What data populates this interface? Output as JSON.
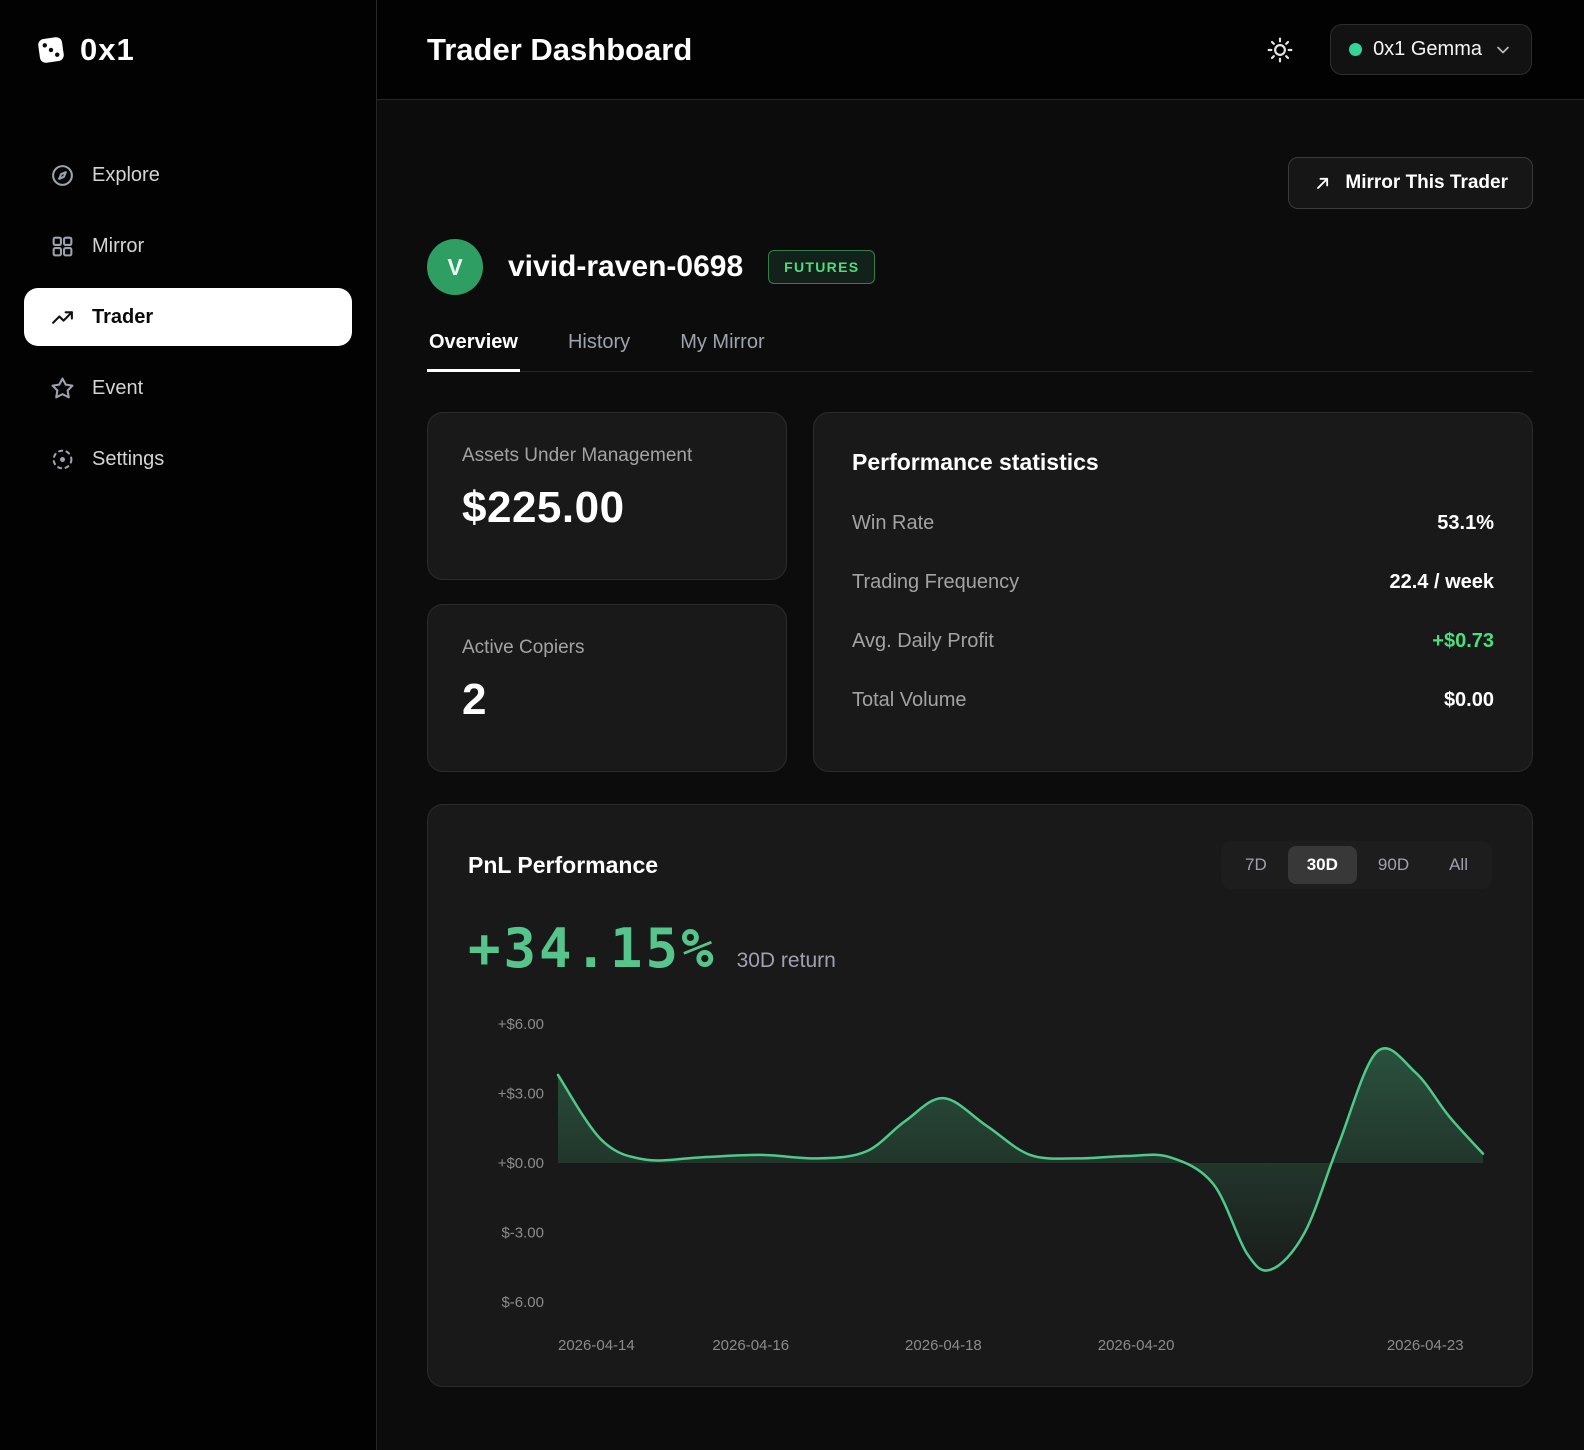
{
  "brand": {
    "logo_text": "0x1"
  },
  "header": {
    "title": "Trader Dashboard",
    "account_label": "0x1 Gemma"
  },
  "sidebar": {
    "items": [
      {
        "label": "Explore",
        "active": false
      },
      {
        "label": "Mirror",
        "active": false
      },
      {
        "label": "Trader",
        "active": true
      },
      {
        "label": "Event",
        "active": false
      },
      {
        "label": "Settings",
        "active": false
      }
    ]
  },
  "trader": {
    "avatar_letter": "V",
    "name": "vivid-raven-0698",
    "badge": "FUTURES",
    "mirror_button_label": "Mirror This Trader"
  },
  "tabs": [
    {
      "label": "Overview",
      "active": true
    },
    {
      "label": "History",
      "active": false
    },
    {
      "label": "My Mirror",
      "active": false
    }
  ],
  "cards": {
    "aum": {
      "label": "Assets Under Management",
      "value": "$225.00"
    },
    "copiers": {
      "label": "Active Copiers",
      "value": "2"
    }
  },
  "performance": {
    "title": "Performance statistics",
    "rows": [
      {
        "label": "Win Rate",
        "value": "53.1%",
        "highlight": false
      },
      {
        "label": "Trading Frequency",
        "value": "22.4 / week",
        "highlight": false
      },
      {
        "label": "Avg. Daily Profit",
        "value": "+$0.73",
        "highlight": true
      },
      {
        "label": "Total Volume",
        "value": "$0.00",
        "highlight": false
      }
    ]
  },
  "pnl": {
    "title": "PnL Performance",
    "ranges": [
      "7D",
      "30D",
      "90D",
      "All"
    ],
    "active_range": "30D",
    "return_value": "+34.15%",
    "return_label": "30D return"
  },
  "colors": {
    "accent_green": "#4ade80",
    "chart_green": "#4ec98a",
    "avatar_green": "#2f9e63"
  },
  "chart_data": {
    "type": "area",
    "title": "PnL Performance (30D)",
    "xlim": [
      0,
      9.6
    ],
    "ylim": [
      -6.6,
      6.6
    ],
    "x": [
      0,
      0.45,
      0.9,
      1.5,
      2.1,
      2.7,
      3.2,
      3.6,
      4.0,
      4.45,
      4.9,
      5.4,
      5.9,
      6.35,
      6.8,
      7.15,
      7.4,
      7.75,
      8.1,
      8.5,
      8.9,
      9.25,
      9.6
    ],
    "y": [
      3.8,
      1.0,
      0.15,
      0.25,
      0.35,
      0.2,
      0.5,
      1.8,
      2.8,
      1.6,
      0.35,
      0.2,
      0.3,
      0.25,
      -0.9,
      -3.9,
      -4.6,
      -3.0,
      0.8,
      4.8,
      3.9,
      2.0,
      0.4
    ],
    "y_tick_values": [
      6,
      3,
      0,
      -3,
      -6
    ],
    "y_tick_labels": [
      "+$6.00",
      "+$3.00",
      "+$0.00",
      "$-3.00",
      "$-6.00"
    ],
    "x_tick_positions": [
      0,
      2,
      4,
      6,
      9
    ],
    "x_tick_labels": [
      "2026-04-14",
      "2026-04-16",
      "2026-04-18",
      "2026-04-20",
      "2026-04-23"
    ],
    "line_color": "#4ec98a",
    "grid": false,
    "legend": false
  }
}
